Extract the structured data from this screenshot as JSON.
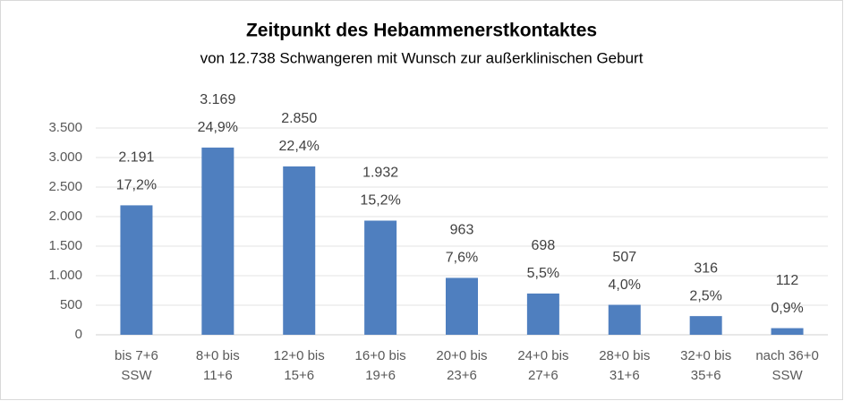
{
  "chart_data": {
    "type": "bar",
    "title": "Zeitpunkt des Hebammenerstkontaktes",
    "subtitle": "von 12.738 Schwangeren mit Wunsch zur außerklinischen Geburt",
    "categories": [
      "bis 7+6\nSSW",
      "8+0 bis\n11+6",
      "12+0 bis\n15+6",
      "16+0 bis\n19+6",
      "20+0 bis\n23+6",
      "24+0 bis\n27+6",
      "28+0 bis\n31+6",
      "32+0 bis\n35+6",
      "nach 36+0\nSSW"
    ],
    "values": [
      2191,
      3169,
      2850,
      1932,
      963,
      698,
      507,
      316,
      112
    ],
    "value_labels": [
      "2.191",
      "3.169",
      "2.850",
      "1.932",
      "963",
      "698",
      "507",
      "316",
      "112"
    ],
    "percent_labels": [
      "17,2%",
      "24,9%",
      "22,4%",
      "15,2%",
      "7,6%",
      "5,5%",
      "4,0%",
      "2,5%",
      "0,9%"
    ],
    "color": "#4f7fbf",
    "ylim": [
      0,
      3500
    ],
    "yticks": [
      {
        "value": 0,
        "label": "0"
      },
      {
        "value": 500,
        "label": "500"
      },
      {
        "value": 1000,
        "label": "1.000"
      },
      {
        "value": 1500,
        "label": "1.500"
      },
      {
        "value": 2000,
        "label": "2.000"
      },
      {
        "value": 2500,
        "label": "2.500"
      },
      {
        "value": 3000,
        "label": "3.000"
      },
      {
        "value": 3500,
        "label": "3.500"
      }
    ],
    "grid": true
  }
}
